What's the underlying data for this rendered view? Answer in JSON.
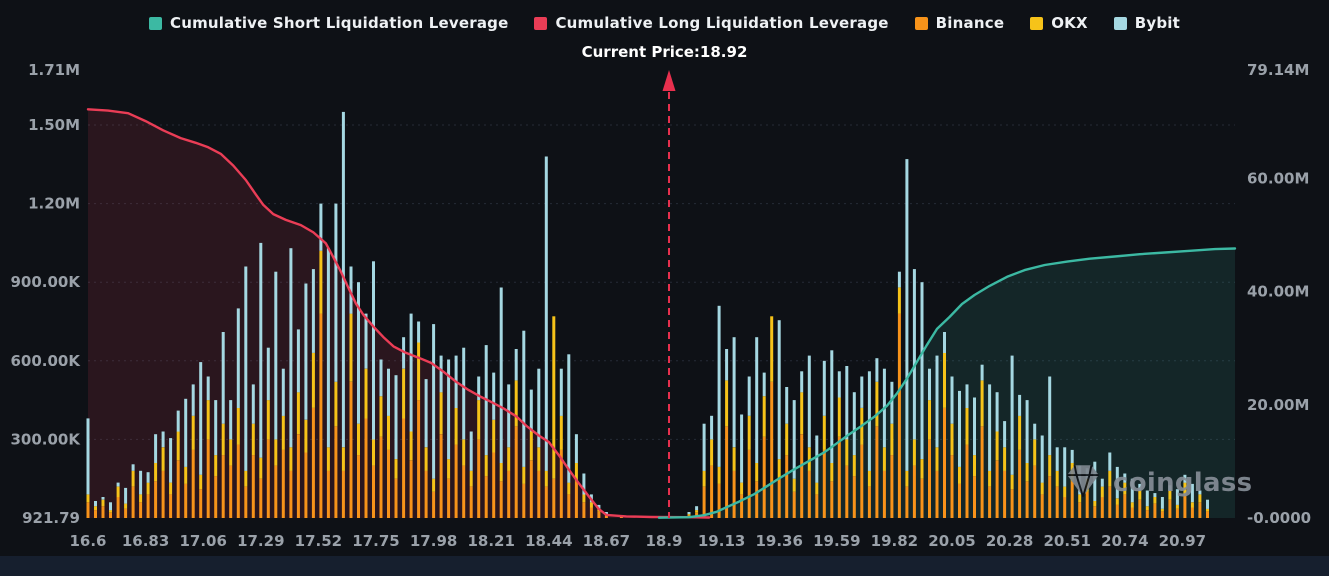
{
  "legend": {
    "items": [
      {
        "label": "Cumulative Short Liquidation Leverage",
        "color": "#3cb9a3"
      },
      {
        "label": "Cumulative Long Liquidation Leverage",
        "color": "#ea3d56"
      },
      {
        "label": "Binance",
        "color": "#f7931a"
      },
      {
        "label": "OKX",
        "color": "#f6c319"
      },
      {
        "label": "Bybit",
        "color": "#a5d8e2"
      }
    ]
  },
  "watermark": {
    "text": "coinglass"
  },
  "chart_data": {
    "type": "mixed",
    "annotation": "Current Price:18.92",
    "current_price": 18.92,
    "colors": {
      "grid": "#252b36",
      "axis_text": "#9aa1a9",
      "price_line": "#e8304e"
    },
    "x_axis": {
      "min": 16.6,
      "max": 21.18,
      "ticks": [
        "16.6",
        "16.83",
        "17.06",
        "17.29",
        "17.52",
        "17.75",
        "17.98",
        "18.21",
        "18.44",
        "18.67",
        "18.9",
        "19.13",
        "19.36",
        "19.59",
        "19.82",
        "20.05",
        "20.28",
        "20.51",
        "20.74",
        "20.97"
      ]
    },
    "left_axis": {
      "unit": "K",
      "max": 1710,
      "ticks": [
        {
          "label": "1.71M",
          "value": 1710
        },
        {
          "label": "1.50M",
          "value": 1500
        },
        {
          "label": "1.20M",
          "value": 1200
        },
        {
          "label": "900.00K",
          "value": 900
        },
        {
          "label": "600.00K",
          "value": 600
        },
        {
          "label": "300.00K",
          "value": 300
        },
        {
          "label": "921.79",
          "value": 0
        }
      ]
    },
    "right_axis": {
      "unit": "M",
      "max": 79.14,
      "ticks": [
        {
          "label": "79.14M",
          "value": 79.14
        },
        {
          "label": "60.00M",
          "value": 60
        },
        {
          "label": "40.00M",
          "value": 40
        },
        {
          "label": "20.00M",
          "value": 20
        },
        {
          "label": "-0.0000",
          "value": 0
        }
      ]
    },
    "bars_x": {
      "start": 16.6,
      "step": 0.03
    },
    "series": [
      {
        "name": "Cumulative Long Liquidation Leverage",
        "type": "line",
        "axis": "left",
        "color": "#ea3d56",
        "points": [
          [
            16.6,
            1560
          ],
          [
            16.68,
            1555
          ],
          [
            16.76,
            1545
          ],
          [
            16.83,
            1515
          ],
          [
            16.9,
            1480
          ],
          [
            16.97,
            1450
          ],
          [
            17.03,
            1432
          ],
          [
            17.08,
            1415
          ],
          [
            17.13,
            1390
          ],
          [
            17.18,
            1345
          ],
          [
            17.23,
            1290
          ],
          [
            17.27,
            1235
          ],
          [
            17.3,
            1195
          ],
          [
            17.34,
            1160
          ],
          [
            17.39,
            1138
          ],
          [
            17.45,
            1118
          ],
          [
            17.5,
            1090
          ],
          [
            17.55,
            1048
          ],
          [
            17.58,
            995
          ],
          [
            17.61,
            940
          ],
          [
            17.64,
            878
          ],
          [
            17.67,
            818
          ],
          [
            17.7,
            775
          ],
          [
            17.74,
            730
          ],
          [
            17.78,
            690
          ],
          [
            17.82,
            655
          ],
          [
            17.87,
            630
          ],
          [
            17.92,
            612
          ],
          [
            17.97,
            592
          ],
          [
            18.02,
            558
          ],
          [
            18.07,
            520
          ],
          [
            18.12,
            488
          ],
          [
            18.17,
            462
          ],
          [
            18.21,
            443
          ],
          [
            18.26,
            418
          ],
          [
            18.31,
            388
          ],
          [
            18.35,
            352
          ],
          [
            18.4,
            315
          ],
          [
            18.44,
            290
          ],
          [
            18.48,
            240
          ],
          [
            18.52,
            185
          ],
          [
            18.56,
            132
          ],
          [
            18.6,
            82
          ],
          [
            18.64,
            34
          ],
          [
            18.67,
            12
          ],
          [
            18.75,
            6
          ],
          [
            18.85,
            4
          ],
          [
            19.0,
            3
          ],
          [
            19.08,
            2
          ]
        ]
      },
      {
        "name": "Cumulative Short Liquidation Leverage",
        "type": "line",
        "axis": "right",
        "color": "#3cb9a3",
        "points": [
          [
            18.88,
            0.05
          ],
          [
            19.0,
            0.15
          ],
          [
            19.06,
            0.5
          ],
          [
            19.11,
            1.1
          ],
          [
            19.15,
            1.9
          ],
          [
            19.2,
            2.9
          ],
          [
            19.26,
            4.2
          ],
          [
            19.31,
            5.6
          ],
          [
            19.36,
            7.0
          ],
          [
            19.42,
            8.6
          ],
          [
            19.48,
            10.1
          ],
          [
            19.54,
            11.6
          ],
          [
            19.59,
            13.2
          ],
          [
            19.64,
            14.8
          ],
          [
            19.69,
            16.3
          ],
          [
            19.74,
            17.9
          ],
          [
            19.79,
            19.8
          ],
          [
            19.83,
            22.0
          ],
          [
            19.87,
            24.6
          ],
          [
            19.91,
            27.6
          ],
          [
            19.95,
            30.6
          ],
          [
            19.99,
            33.4
          ],
          [
            20.04,
            35.5
          ],
          [
            20.09,
            37.8
          ],
          [
            20.14,
            39.4
          ],
          [
            20.2,
            41.0
          ],
          [
            20.27,
            42.6
          ],
          [
            20.34,
            43.8
          ],
          [
            20.42,
            44.7
          ],
          [
            20.51,
            45.3
          ],
          [
            20.6,
            45.8
          ],
          [
            20.7,
            46.2
          ],
          [
            20.8,
            46.6
          ],
          [
            20.9,
            46.9
          ],
          [
            21.0,
            47.2
          ],
          [
            21.1,
            47.5
          ],
          [
            21.18,
            47.6
          ]
        ]
      },
      {
        "name": "Binance",
        "type": "bar",
        "axis": "left",
        "color": "#f7931a",
        "values": [
          60,
          30,
          45,
          20,
          80,
          35,
          120,
          60,
          90,
          140,
          180,
          90,
          220,
          130,
          260,
          110,
          300,
          160,
          240,
          200,
          280,
          120,
          240,
          150,
          300,
          200,
          260,
          180,
          320,
          250,
          420,
          780,
          180,
          350,
          180,
          520,
          240,
          380,
          200,
          310,
          260,
          150,
          380,
          220,
          450,
          180,
          100,
          320,
          150,
          280,
          200,
          120,
          300,
          160,
          250,
          140,
          180,
          350,
          130,
          220,
          180,
          120,
          150,
          260,
          90,
          140,
          60,
          40,
          25,
          10,
          0,
          5,
          0,
          0,
          0,
          0,
          0,
          0,
          0,
          5,
          10,
          20,
          120,
          200,
          130,
          350,
          180,
          90,
          260,
          140,
          310,
          520,
          150,
          240,
          100,
          320,
          180,
          90,
          260,
          140,
          310,
          200,
          160,
          280,
          120,
          350,
          180,
          240,
          780,
          120,
          200,
          150,
          300,
          180,
          420,
          240,
          130,
          280,
          160,
          350,
          120,
          220,
          180,
          110,
          260,
          140,
          200,
          90,
          160,
          120,
          80,
          140,
          60,
          100,
          45,
          80,
          120,
          50,
          90,
          40,
          70,
          30,
          55,
          25,
          70,
          35,
          90,
          40,
          60,
          25
        ]
      },
      {
        "name": "OKX",
        "type": "bar",
        "axis": "left",
        "color": "#f6c319",
        "values": [
          30,
          15,
          25,
          10,
          40,
          20,
          60,
          30,
          45,
          70,
          90,
          45,
          110,
          65,
          130,
          55,
          150,
          80,
          120,
          100,
          140,
          60,
          120,
          80,
          150,
          100,
          130,
          90,
          160,
          125,
          210,
          240,
          90,
          170,
          90,
          260,
          120,
          190,
          100,
          155,
          130,
          75,
          190,
          110,
          220,
          90,
          50,
          160,
          75,
          140,
          100,
          60,
          150,
          80,
          125,
          70,
          90,
          175,
          65,
          110,
          90,
          60,
          620,
          130,
          45,
          70,
          30,
          20,
          10,
          5,
          0,
          0,
          0,
          0,
          0,
          0,
          0,
          0,
          0,
          0,
          5,
          10,
          60,
          100,
          65,
          175,
          90,
          45,
          130,
          70,
          155,
          250,
          75,
          120,
          50,
          160,
          90,
          45,
          130,
          70,
          150,
          100,
          80,
          140,
          60,
          170,
          90,
          120,
          100,
          60,
          100,
          75,
          150,
          90,
          210,
          120,
          65,
          140,
          80,
          175,
          60,
          110,
          90,
          55,
          130,
          70,
          100,
          45,
          80,
          60,
          40,
          70,
          30,
          50,
          20,
          40,
          60,
          25,
          45,
          20,
          35,
          15,
          25,
          10,
          35,
          15,
          45,
          20,
          30,
          10
        ]
      },
      {
        "name": "Bybit",
        "type": "bar",
        "axis": "left",
        "color": "#a5d8e2",
        "values": [
          290,
          20,
          10,
          30,
          15,
          60,
          25,
          90,
          40,
          110,
          60,
          170,
          80,
          260,
          120,
          430,
          90,
          210,
          350,
          150,
          380,
          780,
          150,
          820,
          200,
          640,
          180,
          760,
          240,
          520,
          320,
          180,
          760,
          680,
          1280,
          180,
          540,
          210,
          680,
          140,
          180,
          320,
          120,
          450,
          80,
          260,
          590,
          140,
          380,
          200,
          350,
          150,
          90,
          420,
          180,
          670,
          240,
          120,
          520,
          160,
          300,
          1200,
          0,
          180,
          490,
          110,
          80,
          30,
          15,
          8,
          0,
          0,
          0,
          0,
          0,
          0,
          0,
          0,
          5,
          0,
          8,
          15,
          180,
          90,
          615,
          120,
          420,
          260,
          150,
          480,
          90,
          0,
          530,
          140,
          300,
          80,
          350,
          180,
          210,
          430,
          100,
          280,
          240,
          120,
          380,
          90,
          300,
          160,
          60,
          1190,
          650,
          675,
          120,
          350,
          80,
          180,
          290,
          90,
          220,
          60,
          330,
          150,
          100,
          455,
          80,
          240,
          60,
          180,
          300,
          90,
          150,
          50,
          110,
          40,
          150,
          30,
          70,
          120,
          35,
          90,
          25,
          60,
          15,
          45,
          20,
          60,
          30,
          70,
          15,
          35
        ]
      }
    ]
  }
}
